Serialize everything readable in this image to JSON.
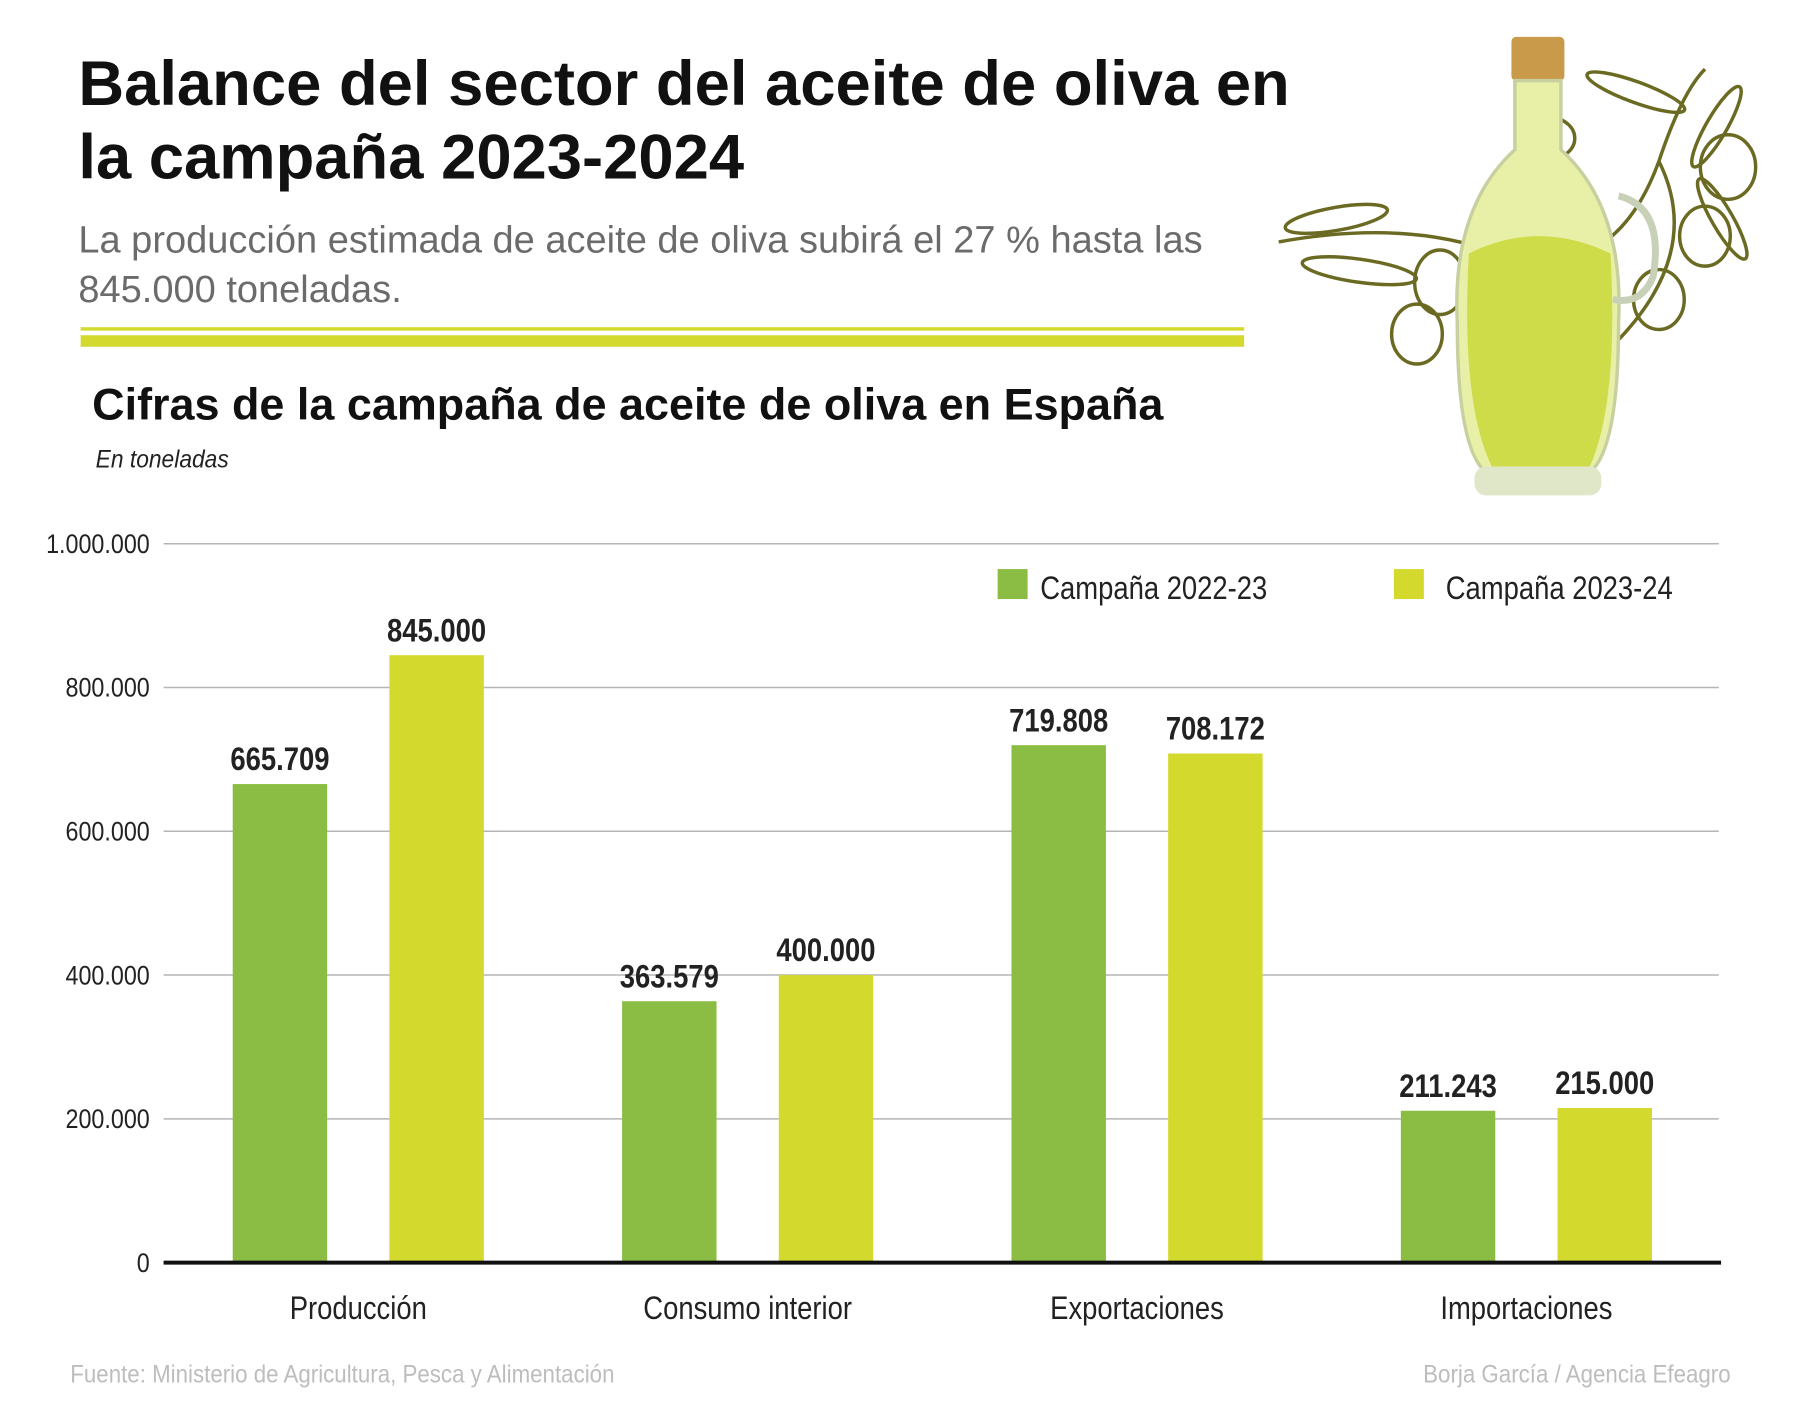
{
  "header": {
    "title": "Balance del sector del aceite de oliva en la campaña 2023-2024",
    "subtitle": "La producción estimada de aceite de oliva subirá el 27 % hasta las 845.000 toneladas."
  },
  "footer": {
    "source": "Fuente: Ministerio de Agricultura, Pesca y Alimentación",
    "credit": "Borja García / Agencia Efeagro"
  },
  "illustration": "olive-oil-bottle-with-olive-branch",
  "chart_data": {
    "type": "bar",
    "title": "Cifras de la campaña de aceite de oliva en España",
    "subtitle": "En toneladas",
    "categories": [
      "Producción",
      "Consumo interior",
      "Exportaciones",
      "Importaciones"
    ],
    "series": [
      {
        "name": "Campaña 2022-23",
        "color": "#8bbd45",
        "values": [
          665709,
          363579,
          719808,
          211243
        ],
        "labels": [
          "665.709",
          "363.579",
          "719.808",
          "211.243"
        ]
      },
      {
        "name": "Campaña 2023-24",
        "color": "#d4d92e",
        "values": [
          845000,
          400000,
          708172,
          215000
        ],
        "labels": [
          "845.000",
          "400.000",
          "708.172",
          "215.000"
        ]
      }
    ],
    "ylim": [
      0,
      1000000
    ],
    "yticks": [
      0,
      200000,
      400000,
      600000,
      800000,
      1000000
    ],
    "ytick_labels": [
      "0",
      "200.000",
      "400.000",
      "600.000",
      "800.000",
      "1.000.000"
    ],
    "grid": true,
    "legend": "top-right"
  }
}
